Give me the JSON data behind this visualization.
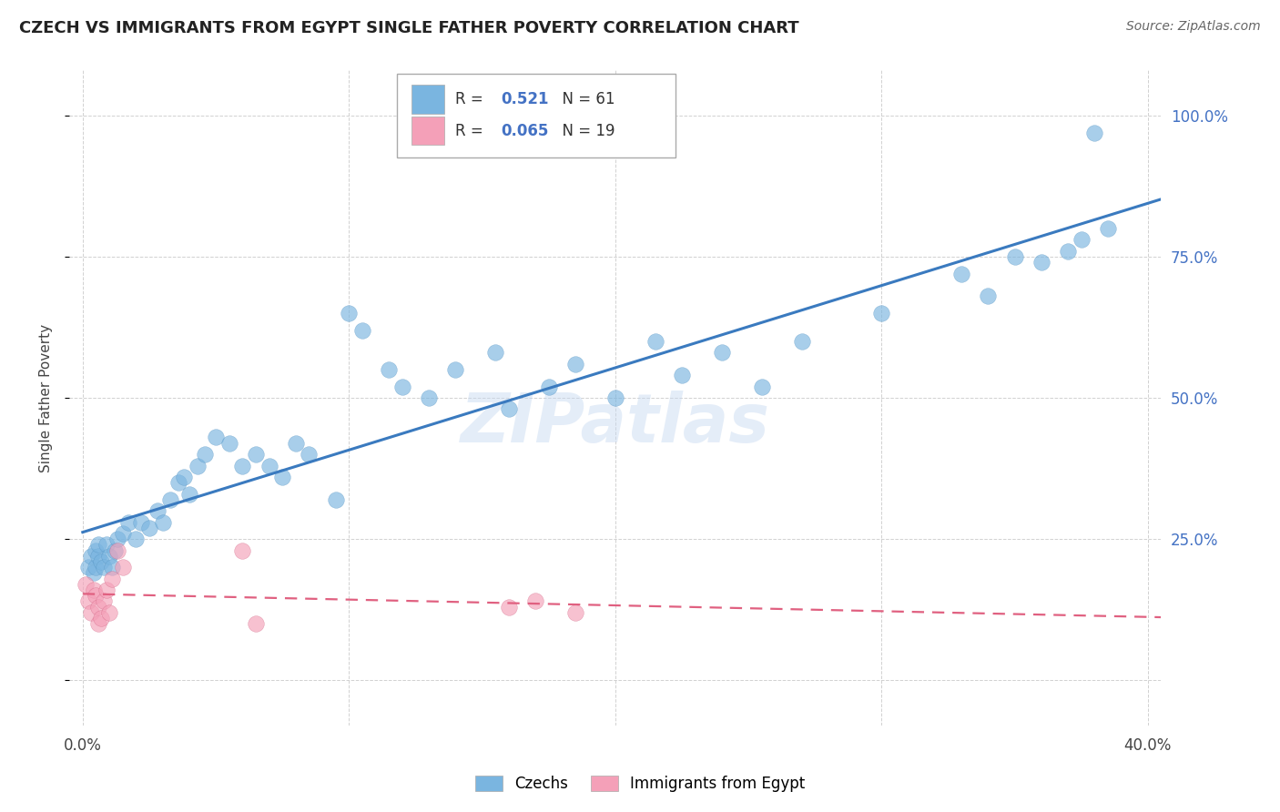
{
  "title": "CZECH VS IMMIGRANTS FROM EGYPT SINGLE FATHER POVERTY CORRELATION CHART",
  "source": "Source: ZipAtlas.com",
  "ylabel": "Single Father Poverty",
  "ytick_labels": [
    "",
    "25.0%",
    "50.0%",
    "75.0%",
    "100.0%"
  ],
  "xlim": [
    -0.005,
    0.405
  ],
  "ylim": [
    -0.08,
    1.08
  ],
  "czech_R": 0.521,
  "czech_N": 61,
  "egypt_R": 0.065,
  "egypt_N": 19,
  "watermark": "ZIPatlas",
  "legend_labels": [
    "Czechs",
    "Immigrants from Egypt"
  ],
  "blue_color": "#7ab5e0",
  "pink_color": "#f4a0b8",
  "blue_line_color": "#3a7abf",
  "pink_line_color": "#e06080",
  "blue_dot_edge": "#5090c0",
  "pink_dot_edge": "#d06080",
  "czech_x": [
    0.002,
    0.003,
    0.004,
    0.005,
    0.005,
    0.006,
    0.006,
    0.007,
    0.008,
    0.009,
    0.01,
    0.011,
    0.012,
    0.013,
    0.015,
    0.017,
    0.02,
    0.022,
    0.025,
    0.028,
    0.03,
    0.033,
    0.036,
    0.038,
    0.04,
    0.043,
    0.046,
    0.05,
    0.055,
    0.06,
    0.065,
    0.07,
    0.075,
    0.08,
    0.085,
    0.095,
    0.1,
    0.105,
    0.115,
    0.12,
    0.13,
    0.14,
    0.155,
    0.16,
    0.175,
    0.185,
    0.2,
    0.215,
    0.225,
    0.24,
    0.255,
    0.27,
    0.3,
    0.33,
    0.35,
    0.375,
    0.385,
    0.34,
    0.36,
    0.37,
    0.38
  ],
  "czech_y": [
    0.2,
    0.22,
    0.19,
    0.23,
    0.2,
    0.22,
    0.24,
    0.21,
    0.2,
    0.24,
    0.22,
    0.2,
    0.23,
    0.25,
    0.26,
    0.28,
    0.25,
    0.28,
    0.27,
    0.3,
    0.28,
    0.32,
    0.35,
    0.36,
    0.33,
    0.38,
    0.4,
    0.43,
    0.42,
    0.38,
    0.4,
    0.38,
    0.36,
    0.42,
    0.4,
    0.32,
    0.65,
    0.62,
    0.55,
    0.52,
    0.5,
    0.55,
    0.58,
    0.48,
    0.52,
    0.56,
    0.5,
    0.6,
    0.54,
    0.58,
    0.52,
    0.6,
    0.65,
    0.72,
    0.75,
    0.78,
    0.8,
    0.68,
    0.74,
    0.76,
    0.97
  ],
  "egypt_x": [
    0.001,
    0.002,
    0.003,
    0.004,
    0.005,
    0.006,
    0.006,
    0.007,
    0.008,
    0.009,
    0.01,
    0.011,
    0.013,
    0.015,
    0.06,
    0.065,
    0.16,
    0.17,
    0.185
  ],
  "egypt_y": [
    0.17,
    0.14,
    0.12,
    0.16,
    0.15,
    0.13,
    0.1,
    0.11,
    0.14,
    0.16,
    0.12,
    0.18,
    0.23,
    0.2,
    0.23,
    0.1,
    0.13,
    0.14,
    0.12
  ],
  "yticks": [
    0.0,
    0.25,
    0.5,
    0.75,
    1.0
  ]
}
